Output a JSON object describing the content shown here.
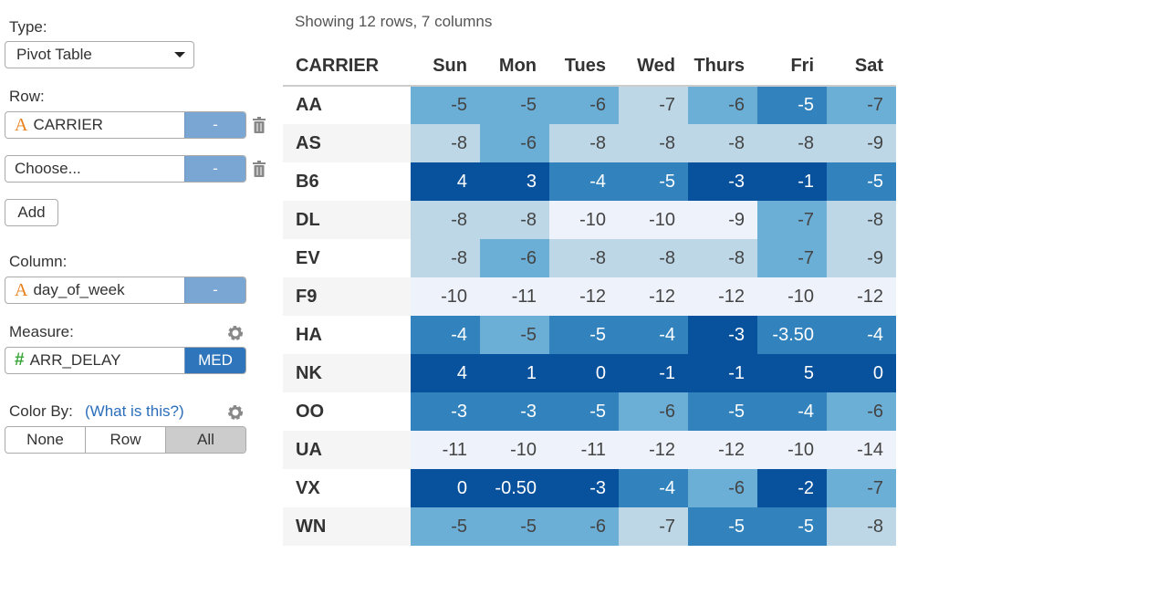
{
  "sidebar": {
    "type_label": "Type:",
    "type_value": "Pivot Table",
    "row_label": "Row:",
    "row_fields": [
      {
        "icon": "A",
        "name": "CARRIER",
        "button": "-"
      },
      {
        "name": "Choose...",
        "button": "-"
      }
    ],
    "add_button": "Add",
    "column_label": "Column:",
    "column_field": {
      "icon": "A",
      "name": "day_of_week",
      "button": "-"
    },
    "measure_label": "Measure:",
    "measure_field": {
      "icon": "#",
      "name": "ARR_DELAY",
      "button": "MED"
    },
    "color_by_label": "Color By:",
    "color_by_link": "(What is this?)",
    "color_by_options": [
      "None",
      "Row",
      "All"
    ]
  },
  "table": {
    "summary": "Showing 12 rows, 7 columns",
    "columns": [
      "CARRIER",
      "Sun",
      "Mon",
      "Tues",
      "Wed",
      "Thurs",
      "Fri",
      "Sat"
    ],
    "rows": [
      [
        "AA",
        "-5",
        "-5",
        "-6",
        "-7",
        "-6",
        "-5",
        "-7"
      ],
      [
        "AS",
        "-8",
        "-6",
        "-8",
        "-8",
        "-8",
        "-8",
        "-9"
      ],
      [
        "B6",
        "4",
        "3",
        "-4",
        "-5",
        "-3",
        "-1",
        "-5"
      ],
      [
        "DL",
        "-8",
        "-8",
        "-10",
        "-10",
        "-9",
        "-7",
        "-8"
      ],
      [
        "EV",
        "-8",
        "-6",
        "-8",
        "-8",
        "-8",
        "-7",
        "-9"
      ],
      [
        "F9",
        "-10",
        "-11",
        "-12",
        "-12",
        "-12",
        "-10",
        "-12"
      ],
      [
        "HA",
        "-4",
        "-5",
        "-5",
        "-4",
        "-3",
        "-3.50",
        "-4"
      ],
      [
        "NK",
        "4",
        "1",
        "0",
        "-1",
        "-1",
        "5",
        "0"
      ],
      [
        "OO",
        "-3",
        "-3",
        "-5",
        "-6",
        "-5",
        "-4",
        "-6"
      ],
      [
        "UA",
        "-11",
        "-10",
        "-11",
        "-12",
        "-12",
        "-10",
        "-14"
      ],
      [
        "VX",
        "0",
        "-0.50",
        "-3",
        "-4",
        "-6",
        "-2",
        "-7"
      ],
      [
        "WN",
        "-5",
        "-5",
        "-6",
        "-7",
        "-5",
        "-5",
        "-8"
      ]
    ],
    "cell_colors": [
      [
        "#6baed6",
        "#6baed6",
        "#6baed6",
        "#bdd7e7",
        "#6baed6",
        "#3182bd",
        "#6baed6"
      ],
      [
        "#bdd7e7",
        "#6baed6",
        "#bdd7e7",
        "#bdd7e7",
        "#bdd7e7",
        "#bdd7e7",
        "#bdd7e7"
      ],
      [
        "#08519c",
        "#08519c",
        "#3182bd",
        "#3182bd",
        "#08519c",
        "#08519c",
        "#3182bd"
      ],
      [
        "#bdd7e7",
        "#bdd7e7",
        "#eef2fb",
        "#eef2fb",
        "#eef2fb",
        "#6baed6",
        "#bdd7e7"
      ],
      [
        "#bdd7e7",
        "#6baed6",
        "#bdd7e7",
        "#bdd7e7",
        "#bdd7e7",
        "#6baed6",
        "#bdd7e7"
      ],
      [
        "#eef2fb",
        "#eef2fb",
        "#eef2fb",
        "#eef2fb",
        "#eef2fb",
        "#eef2fb",
        "#eef2fb"
      ],
      [
        "#3182bd",
        "#6baed6",
        "#3182bd",
        "#3182bd",
        "#08519c",
        "#3182bd",
        "#3182bd"
      ],
      [
        "#08519c",
        "#08519c",
        "#08519c",
        "#08519c",
        "#08519c",
        "#08519c",
        "#08519c"
      ],
      [
        "#3182bd",
        "#3182bd",
        "#3182bd",
        "#6baed6",
        "#3182bd",
        "#3182bd",
        "#6baed6"
      ],
      [
        "#eef2fb",
        "#eef2fb",
        "#eef2fb",
        "#eef2fb",
        "#eef2fb",
        "#eef2fb",
        "#eef2fb"
      ],
      [
        "#08519c",
        "#08519c",
        "#08519c",
        "#3182bd",
        "#6baed6",
        "#08519c",
        "#6baed6"
      ],
      [
        "#6baed6",
        "#6baed6",
        "#6baed6",
        "#bdd7e7",
        "#3182bd",
        "#3182bd",
        "#bdd7e7"
      ]
    ]
  }
}
